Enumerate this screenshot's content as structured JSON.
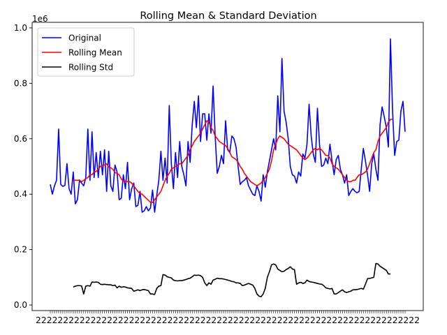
{
  "chart_data": {
    "type": "line",
    "title": "Rolling Mean & Standard Deviation",
    "xlabel": "",
    "ylabel": "",
    "y_offset_label": "1e6",
    "ylim": [
      -0.02,
      1.02
    ],
    "yticks": [
      0.0,
      0.2,
      0.4,
      0.6,
      0.8,
      1.0
    ],
    "ytick_labels": [
      "0.0",
      "0.2",
      "0.4",
      "0.6",
      "0.8",
      "1.0"
    ],
    "x_tick_labels_note": "dense overlapping date tick labels, unreadable",
    "legend": {
      "placement": "upper-left",
      "entries": [
        {
          "label": "Original",
          "color": "#0000ff"
        },
        {
          "label": "Rolling Mean",
          "color": "#ff0000"
        },
        {
          "label": "Rolling Std",
          "color": "#000000"
        }
      ]
    },
    "series": [
      {
        "name": "Original",
        "color": "#0000ff",
        "values": [
          0.435,
          0.4,
          0.43,
          0.45,
          0.635,
          0.435,
          0.428,
          0.432,
          0.51,
          0.42,
          0.4,
          0.48,
          0.365,
          0.38,
          0.45,
          0.44,
          0.43,
          0.46,
          0.635,
          0.45,
          0.625,
          0.46,
          0.55,
          0.46,
          0.555,
          0.47,
          0.56,
          0.41,
          0.555,
          0.43,
          0.41,
          0.505,
          0.48,
          0.38,
          0.385,
          0.47,
          0.42,
          0.515,
          0.38,
          0.42,
          0.44,
          0.355,
          0.36,
          0.41,
          0.335,
          0.34,
          0.355,
          0.34,
          0.35,
          0.415,
          0.335,
          0.395,
          0.45,
          0.555,
          0.45,
          0.53,
          0.44,
          0.72,
          0.51,
          0.42,
          0.55,
          0.46,
          0.59,
          0.5,
          0.47,
          0.43,
          0.59,
          0.515,
          0.65,
          0.735,
          0.64,
          0.755,
          0.59,
          0.69,
          0.69,
          0.595,
          0.69,
          0.62,
          0.79,
          0.61,
          0.475,
          0.5,
          0.54,
          0.51,
          0.665,
          0.56,
          0.55,
          0.61,
          0.6,
          0.57,
          0.5,
          0.435,
          0.445,
          0.45,
          0.46,
          0.43,
          0.415,
          0.4,
          0.395,
          0.43,
          0.41,
          0.375,
          0.47,
          0.425,
          0.48,
          0.52,
          0.56,
          0.6,
          0.56,
          0.755,
          0.625,
          0.89,
          0.7,
          0.66,
          0.6,
          0.5,
          0.47,
          0.465,
          0.44,
          0.48,
          0.465,
          0.545,
          0.53,
          0.58,
          0.725,
          0.61,
          0.545,
          0.515,
          0.71,
          0.58,
          0.5,
          0.505,
          0.53,
          0.51,
          0.58,
          0.52,
          0.47,
          0.525,
          0.54,
          0.49,
          0.47,
          0.44,
          0.47,
          0.395,
          0.41,
          0.42,
          0.41,
          0.405,
          0.41,
          0.49,
          0.565,
          0.52,
          0.47,
          0.41,
          0.51,
          0.545,
          0.49,
          0.45,
          0.65,
          0.715,
          0.68,
          0.64,
          0.57,
          0.96,
          0.7,
          0.54,
          0.59,
          0.595,
          0.7,
          0.735,
          0.625
        ]
      },
      {
        "name": "Rolling Mean",
        "color": "#ff0000",
        "start_index": 11,
        "values": [
          0.452,
          0.45,
          0.45,
          0.451,
          0.445,
          0.45,
          0.455,
          0.46,
          0.47,
          0.47,
          0.48,
          0.482,
          0.49,
          0.5,
          0.505,
          0.505,
          0.51,
          0.498,
          0.495,
          0.49,
          0.478,
          0.475,
          0.47,
          0.455,
          0.448,
          0.447,
          0.445,
          0.445,
          0.44,
          0.43,
          0.42,
          0.41,
          0.402,
          0.4,
          0.392,
          0.385,
          0.378,
          0.37,
          0.37,
          0.38,
          0.39,
          0.4,
          0.41,
          0.43,
          0.45,
          0.465,
          0.475,
          0.49,
          0.495,
          0.5,
          0.505,
          0.51,
          0.51,
          0.52,
          0.53,
          0.54,
          0.56,
          0.575,
          0.59,
          0.6,
          0.61,
          0.62,
          0.635,
          0.65,
          0.665,
          0.66,
          0.64,
          0.63,
          0.61,
          0.6,
          0.59,
          0.585,
          0.58,
          0.575,
          0.565,
          0.55,
          0.535,
          0.53,
          0.525,
          0.515,
          0.5,
          0.49,
          0.475,
          0.465,
          0.455,
          0.445,
          0.44,
          0.435,
          0.43,
          0.435,
          0.44,
          0.45,
          0.46,
          0.475,
          0.49,
          0.52,
          0.56,
          0.58,
          0.6,
          0.61,
          0.605,
          0.6,
          0.59,
          0.58,
          0.575,
          0.57,
          0.565,
          0.56,
          0.55,
          0.54,
          0.53,
          0.525,
          0.53,
          0.54,
          0.55,
          0.56,
          0.565,
          0.56,
          0.565,
          0.56,
          0.55,
          0.54,
          0.54,
          0.53,
          0.51,
          0.5,
          0.495,
          0.49,
          0.48,
          0.47,
          0.46,
          0.45,
          0.445,
          0.445,
          0.45,
          0.45,
          0.46,
          0.47,
          0.47,
          0.475,
          0.48,
          0.49,
          0.51,
          0.53,
          0.55,
          0.56,
          0.59,
          0.61,
          0.62,
          0.63,
          0.64,
          0.66,
          0.67,
          0.67
        ]
      },
      {
        "name": "Rolling Std",
        "color": "#000000",
        "start_index": 11,
        "values": [
          0.065,
          0.068,
          0.07,
          0.07,
          0.069,
          0.04,
          0.068,
          0.07,
          0.068,
          0.083,
          0.082,
          0.083,
          0.082,
          0.075,
          0.074,
          0.075,
          0.074,
          0.073,
          0.073,
          0.07,
          0.072,
          0.062,
          0.068,
          0.064,
          0.066,
          0.065,
          0.062,
          0.061,
          0.06,
          0.05,
          0.052,
          0.055,
          0.052,
          0.055,
          0.056,
          0.054,
          0.052,
          0.04,
          0.04,
          0.038,
          0.06,
          0.068,
          0.07,
          0.11,
          0.108,
          0.102,
          0.1,
          0.098,
          0.09,
          0.088,
          0.087,
          0.088,
          0.088,
          0.09,
          0.092,
          0.095,
          0.097,
          0.102,
          0.108,
          0.107,
          0.108,
          0.106,
          0.1,
          0.08,
          0.07,
          0.08,
          0.075,
          0.09,
          0.093,
          0.097,
          0.095,
          0.095,
          0.094,
          0.092,
          0.09,
          0.088,
          0.085,
          0.084,
          0.08,
          0.08,
          0.078,
          0.07,
          0.072,
          0.075,
          0.078,
          0.075,
          0.072,
          0.06,
          0.04,
          0.032,
          0.03,
          0.04,
          0.06,
          0.1,
          0.12,
          0.145,
          0.148,
          0.145,
          0.13,
          0.125,
          0.12,
          0.122,
          0.128,
          0.132,
          0.138,
          0.13,
          0.128,
          0.075,
          0.08,
          0.082,
          0.078,
          0.08,
          0.09,
          0.085,
          0.083,
          0.082,
          0.08,
          0.078,
          0.076,
          0.075,
          0.07,
          0.062,
          0.06,
          0.058,
          0.06,
          0.04,
          0.04,
          0.045,
          0.05,
          0.055,
          0.048,
          0.045,
          0.048,
          0.05,
          0.055,
          0.055,
          0.056,
          0.058,
          0.06,
          0.057,
          0.075,
          0.095,
          0.096,
          0.098,
          0.1,
          0.15,
          0.148,
          0.14,
          0.135,
          0.13,
          0.125,
          0.112,
          0.112
        ]
      }
    ]
  }
}
